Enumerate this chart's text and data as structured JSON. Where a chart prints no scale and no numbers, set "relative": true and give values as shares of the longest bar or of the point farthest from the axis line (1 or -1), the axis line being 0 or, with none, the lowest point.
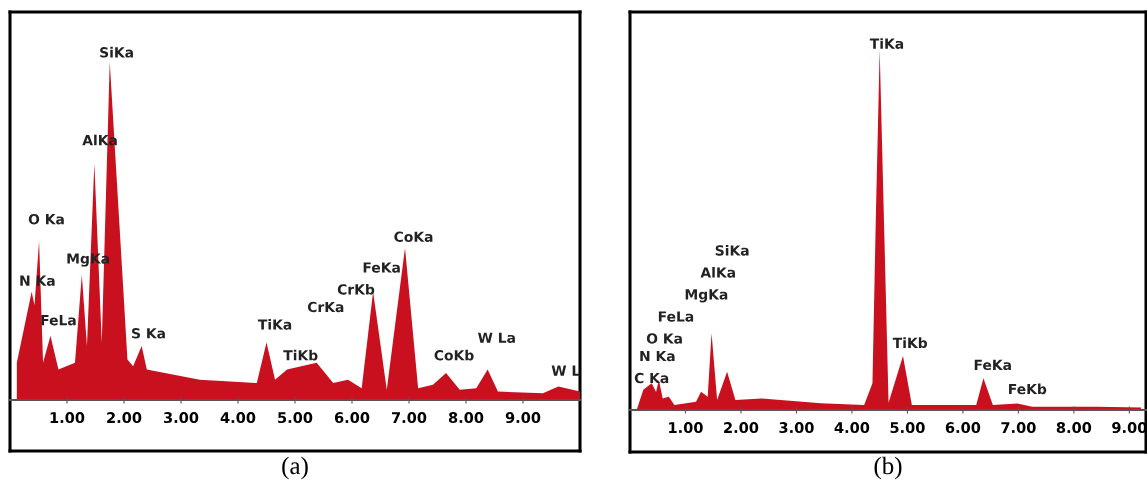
{
  "chart_data": [
    {
      "type": "area",
      "title": "(a)",
      "relative": true,
      "tick_labels": "x",
      "grid": false,
      "xlim": [
        0,
        10
      ],
      "xticks": [
        {
          "value": 1,
          "label": "1.00"
        },
        {
          "value": 2,
          "label": "2.00"
        },
        {
          "value": 3,
          "label": "3.00"
        },
        {
          "value": 4,
          "label": "4.00"
        },
        {
          "value": 5,
          "label": "5.00"
        },
        {
          "value": 6,
          "label": "6.00"
        },
        {
          "value": 7,
          "label": "7.00"
        },
        {
          "value": 8,
          "label": "8.00"
        },
        {
          "value": 9,
          "label": "9.00"
        }
      ],
      "series": [
        {
          "color": "#c8101e",
          "x": [
            0.12,
            0.38,
            0.43,
            0.51,
            0.58,
            0.71,
            0.85,
            1.14,
            1.26,
            1.35,
            1.48,
            1.61,
            1.75,
            1.99,
            2.06,
            2.16,
            2.31,
            2.4,
            3.33,
            4.33,
            4.5,
            4.65,
            4.86,
            5.38,
            5.67,
            5.93,
            6.17,
            6.37,
            6.61,
            6.93,
            7.16,
            7.42,
            7.65,
            7.89,
            8.18,
            8.38,
            8.56,
            9.35,
            9.62,
            10.0
          ],
          "values": [
            0.11,
            0.32,
            0.28,
            0.47,
            0.11,
            0.19,
            0.09,
            0.11,
            0.37,
            0.16,
            0.7,
            0.17,
            1.0,
            0.32,
            0.12,
            0.1,
            0.16,
            0.09,
            0.06,
            0.05,
            0.17,
            0.06,
            0.09,
            0.11,
            0.05,
            0.06,
            0.035,
            0.32,
            0.03,
            0.45,
            0.035,
            0.045,
            0.08,
            0.03,
            0.035,
            0.09,
            0.025,
            0.02,
            0.04,
            0.025
          ]
        }
      ],
      "annotations": [
        "SiKa",
        "AlKa",
        "O Ka",
        "MgKa",
        "N Ka",
        "FeLa",
        "S Ka",
        "TiKa",
        "TiKb",
        "CrKa",
        "CrKb",
        "FeKa",
        "CoKa",
        "CoKb",
        "W La",
        "W L"
      ]
    },
    {
      "type": "area",
      "title": "(b)",
      "relative": true,
      "tick_labels": "x",
      "grid": false,
      "xlim": [
        0,
        9.3
      ],
      "xticks": [
        {
          "value": 1,
          "label": "1.00"
        },
        {
          "value": 2,
          "label": "2.00"
        },
        {
          "value": 3,
          "label": "3.00"
        },
        {
          "value": 4,
          "label": "4.00"
        },
        {
          "value": 5,
          "label": "5.00"
        },
        {
          "value": 6,
          "label": "6.00"
        },
        {
          "value": 7,
          "label": "7.00"
        },
        {
          "value": 8,
          "label": "8.00"
        },
        {
          "value": 9,
          "label": "9.00"
        }
      ],
      "series": [
        {
          "color": "#c8101e",
          "x": [
            0.12,
            0.24,
            0.39,
            0.47,
            0.52,
            0.59,
            0.7,
            0.8,
            1.19,
            1.28,
            1.4,
            1.47,
            1.57,
            1.75,
            1.9,
            2.37,
            3.44,
            4.22,
            4.37,
            4.43,
            4.5,
            4.66,
            4.92,
            5.08,
            6.24,
            6.37,
            6.54,
            6.98,
            7.25,
            8.43,
            9.21
          ],
          "values": [
            0,
            0.056,
            0.074,
            0.05,
            0.083,
            0.032,
            0.037,
            0.014,
            0.023,
            0.051,
            0.037,
            0.213,
            0.028,
            0.106,
            0.028,
            0.032,
            0.019,
            0.014,
            0.074,
            0.53,
            1.0,
            0.02,
            0.15,
            0.014,
            0.014,
            0.088,
            0.014,
            0.018,
            0.009,
            0.009,
            0.007
          ]
        }
      ],
      "annotations": [
        "SiKa",
        "AlKa",
        "MgKa",
        "FeLa",
        "O Ka",
        "N Ka",
        "C Ka",
        "TiKa",
        "TiKb",
        "FeKa",
        "FeKb"
      ]
    }
  ]
}
